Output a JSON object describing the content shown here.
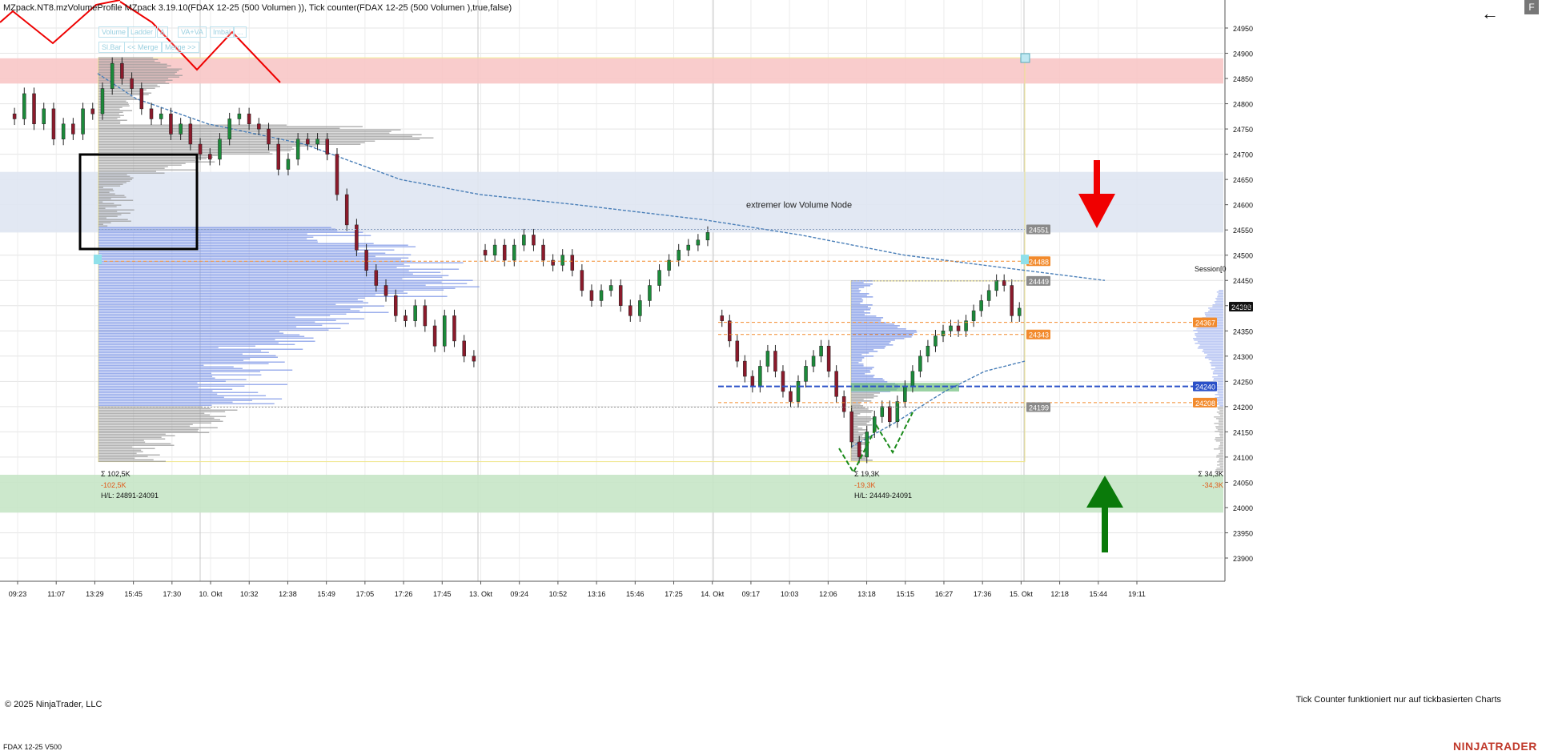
{
  "header": {
    "title": "MZpack.NT8.mzVolumeProfile MZpack 3.19.10(FDAX 12-25 (500 Volumen )), Tick counter(FDAX 12-25 (500 Volumen ),true,false)",
    "back_icon": "arrow-left-icon",
    "f_label": "F"
  },
  "toolbar_buttons": [
    "Volume",
    "Ladder",
    "Δ",
    "VA+VA",
    "Imbal",
    "...",
    "Sl.Bar",
    "<< Merge",
    "Merge >>"
  ],
  "footer": {
    "copyright": "© 2025 NinjaTrader, LLC",
    "tick_note": "Tick Counter funktioniert nur auf tickbasierten Charts",
    "instrument": "FDAX 12-25 V500",
    "brand": "NINJATRADER"
  },
  "colors": {
    "up_candle": "#1c8a3a",
    "down_candle": "#8b1a2b",
    "volume_blue": "#7d95e6",
    "volume_gray": "#9a9a9a",
    "resistance_zone": "#f8c6c6",
    "support_zone": "#c6e5c6",
    "lvn_zone": "#dfe6f2",
    "orange": "#f28a2c",
    "vwap_blue": "#4a7fb8",
    "arrow_red": "#f00000",
    "arrow_green": "#0a7a0a"
  },
  "chart_data": {
    "type": "candlestick",
    "instrument": "FDAX 12-25",
    "y_axis": {
      "range": [
        23870,
        24980
      ],
      "ticks": [
        24950,
        24900,
        24850,
        24800,
        24750,
        24700,
        24650,
        24600,
        24550,
        24500,
        24450,
        24400,
        24350,
        24300,
        24250,
        24200,
        24150,
        24100,
        24050,
        24000,
        23950,
        23900
      ]
    },
    "x_axis": {
      "ticks": [
        "09:23",
        "11:07",
        "13:29",
        "15:45",
        "17:30",
        "10. Okt",
        "10:32",
        "12:38",
        "15:49",
        "17:05",
        "17:26",
        "17:45",
        "13. Okt",
        "09:24",
        "10:52",
        "13:16",
        "15:46",
        "17:25",
        "14. Okt",
        "09:17",
        "10:03",
        "12:06",
        "13:18",
        "15:15",
        "16:27",
        "17:36",
        "15. Okt",
        "12:18",
        "15:44",
        "19:11"
      ]
    },
    "price_series": [
      24770,
      24820,
      24760,
      24790,
      24730,
      24760,
      24740,
      24790,
      24780,
      24830,
      24880,
      24850,
      24830,
      24790,
      24770,
      24780,
      24740,
      24760,
      24720,
      24700,
      24690,
      24730,
      24770,
      24780,
      24760,
      24750,
      24720,
      24670,
      24690,
      24730,
      24720,
      24730,
      24700,
      24620,
      24560,
      24510,
      24470,
      24440,
      24420,
      24380,
      24370,
      24400,
      24360,
      24320,
      24380,
      24330,
      24300,
      24290,
      24500,
      24520,
      24490,
      24520,
      24540,
      24520,
      24490,
      24480,
      24500,
      24470,
      24430,
      24410,
      24430,
      24440,
      24400,
      24380,
      24410,
      24440,
      24470,
      24490,
      24510,
      24520,
      24530,
      24545,
      24370,
      24330,
      24290,
      24260,
      24240,
      24280,
      24310,
      24270,
      24230,
      24210,
      24250,
      24280,
      24300,
      24320,
      24270,
      24220,
      24190,
      24130,
      24100,
      24150,
      24180,
      24200,
      24170,
      24210,
      24240,
      24270,
      24300,
      24320,
      24340,
      24350,
      24360,
      24350,
      24370,
      24390,
      24410,
      24430,
      24450,
      24440,
      24380,
      24395
    ],
    "horizontal_levels": [
      {
        "label": "24551",
        "value": 24551,
        "tag": "gray"
      },
      {
        "label": "24488",
        "value": 24488,
        "tag": "orange"
      },
      {
        "label": "24449",
        "value": 24449,
        "tag": "gray"
      },
      {
        "label": "24398",
        "value": 24398,
        "tag": "black"
      },
      {
        "label": "24367",
        "value": 24367,
        "tag": "orange"
      },
      {
        "label": "24343",
        "value": 24343,
        "tag": "orange"
      },
      {
        "label": "24240",
        "value": 24240,
        "tag": "blue"
      },
      {
        "label": "24208",
        "value": 24208,
        "tag": "orange"
      },
      {
        "label": "24199",
        "value": 24199,
        "tag": "gray"
      }
    ],
    "zones": [
      {
        "name": "resistance",
        "from": 24840,
        "to": 24890
      },
      {
        "name": "low-volume-node",
        "from": 24545,
        "to": 24665,
        "label": "extremer low Volume Node"
      },
      {
        "name": "support",
        "from": 23990,
        "to": 24065
      }
    ],
    "profiles": [
      {
        "sum": "Σ 102,5K",
        "delta": "-102,5K",
        "hl": "H/L: 24891-24091"
      },
      {
        "sum": "Σ 19,3K",
        "delta": "-19,3K",
        "hl": "H/L: 24449-24091"
      },
      {
        "sum": "Σ 34,3K",
        "delta": "-34,3K"
      }
    ],
    "session_label": "Session[0",
    "annotation": "extremer low Volume Node"
  }
}
